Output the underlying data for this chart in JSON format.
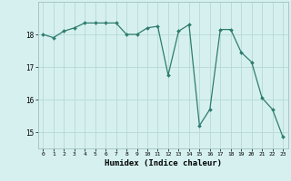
{
  "x": [
    0,
    1,
    2,
    3,
    4,
    5,
    6,
    7,
    8,
    9,
    10,
    11,
    12,
    13,
    14,
    15,
    16,
    17,
    18,
    19,
    20,
    21,
    22,
    23
  ],
  "y": [
    18.0,
    17.9,
    18.1,
    18.2,
    18.35,
    18.35,
    18.35,
    18.35,
    18.0,
    18.0,
    18.2,
    18.25,
    16.75,
    18.1,
    18.3,
    15.2,
    15.7,
    18.15,
    18.15,
    17.45,
    17.15,
    16.05,
    15.7,
    14.85
  ],
  "line_color": "#2e7d6e",
  "marker_color": "#2e7d6e",
  "bg_color": "#d6f0f0",
  "grid_color": "#b8d8d8",
  "xlabel": "Humidex (Indice chaleur)",
  "xlabel_fontsize": 6.5,
  "xlim": [
    -0.5,
    23.5
  ],
  "ylim": [
    14.5,
    19.0
  ],
  "yticks": [
    15,
    16,
    17,
    18
  ],
  "xticks": [
    0,
    1,
    2,
    3,
    4,
    5,
    6,
    7,
    8,
    9,
    10,
    11,
    12,
    13,
    14,
    15,
    16,
    17,
    18,
    19,
    20,
    21,
    22,
    23
  ]
}
